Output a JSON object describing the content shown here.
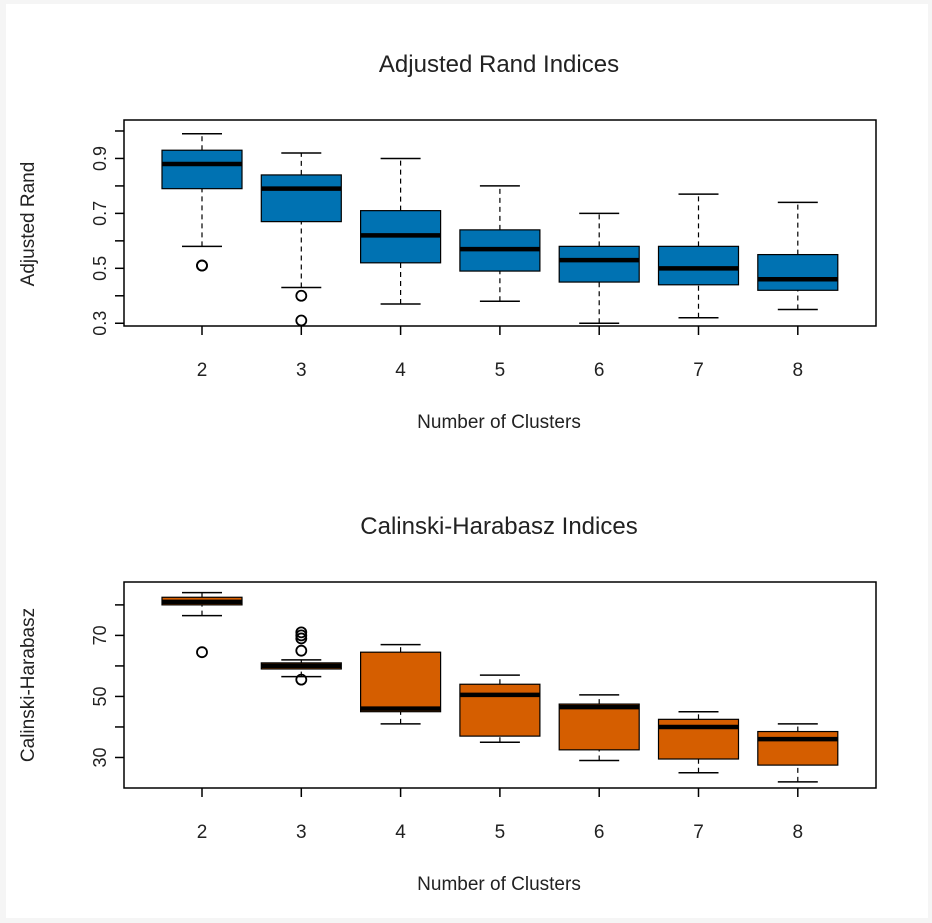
{
  "chart_data": [
    {
      "type": "boxplot",
      "title": "Adjusted Rand Indices",
      "xlabel": "Number of Clusters",
      "ylabel": "Adjusted Rand",
      "ylim": [
        0.29,
        1.04
      ],
      "yticks": [
        0.3,
        0.4,
        0.5,
        0.6,
        0.7,
        0.8,
        0.9,
        1.0
      ],
      "ytick_labels": [
        "0.3",
        "",
        "0.5",
        "",
        "0.7",
        "",
        "0.9",
        ""
      ],
      "categories": [
        "2",
        "3",
        "4",
        "5",
        "6",
        "7",
        "8"
      ],
      "fill_color": "#0072B2",
      "boxes": [
        {
          "category": "2",
          "whisker_low": 0.58,
          "q1": 0.79,
          "median": 0.88,
          "q3": 0.93,
          "whisker_high": 0.99,
          "outliers": [
            0.51,
            0.51
          ]
        },
        {
          "category": "3",
          "whisker_low": 0.43,
          "q1": 0.67,
          "median": 0.79,
          "q3": 0.84,
          "whisker_high": 0.92,
          "outliers": [
            0.4,
            0.31
          ]
        },
        {
          "category": "4",
          "whisker_low": 0.37,
          "q1": 0.52,
          "median": 0.62,
          "q3": 0.71,
          "whisker_high": 0.9,
          "outliers": []
        },
        {
          "category": "5",
          "whisker_low": 0.38,
          "q1": 0.49,
          "median": 0.57,
          "q3": 0.64,
          "whisker_high": 0.8,
          "outliers": []
        },
        {
          "category": "6",
          "whisker_low": 0.3,
          "q1": 0.45,
          "median": 0.53,
          "q3": 0.58,
          "whisker_high": 0.7,
          "outliers": []
        },
        {
          "category": "7",
          "whisker_low": 0.32,
          "q1": 0.44,
          "median": 0.5,
          "q3": 0.58,
          "whisker_high": 0.77,
          "outliers": []
        },
        {
          "category": "8",
          "whisker_low": 0.35,
          "q1": 0.42,
          "median": 0.46,
          "q3": 0.55,
          "whisker_high": 0.74,
          "outliers": []
        }
      ]
    },
    {
      "type": "boxplot",
      "title": "Calinski-Harabasz Indices",
      "xlabel": "Number of Clusters",
      "ylabel": "Calinski-Harabasz",
      "ylim": [
        20,
        87.5
      ],
      "yticks": [
        30,
        40,
        50,
        60,
        70,
        80
      ],
      "ytick_labels": [
        "30",
        "",
        "50",
        "",
        "70",
        ""
      ],
      "categories": [
        "2",
        "3",
        "4",
        "5",
        "6",
        "7",
        "8"
      ],
      "fill_color": "#D55E00",
      "boxes": [
        {
          "category": "2",
          "whisker_low": 76.5,
          "q1": 80.0,
          "median": 81.0,
          "q3": 82.5,
          "whisker_high": 84.0,
          "outliers": [
            64.5
          ]
        },
        {
          "category": "3",
          "whisker_low": 56.5,
          "q1": 59.0,
          "median": 60.0,
          "q3": 61.0,
          "whisker_high": 62.0,
          "outliers": [
            71.0,
            70.0,
            69.0,
            65.0,
            55.5
          ]
        },
        {
          "category": "4",
          "whisker_low": 41.0,
          "q1": 45.0,
          "median": 46.0,
          "q3": 64.5,
          "whisker_high": 67.0,
          "outliers": []
        },
        {
          "category": "5",
          "whisker_low": 35.0,
          "q1": 37.0,
          "median": 50.5,
          "q3": 54.0,
          "whisker_high": 57.0,
          "outliers": []
        },
        {
          "category": "6",
          "whisker_low": 29.0,
          "q1": 32.5,
          "median": 46.5,
          "q3": 47.5,
          "whisker_high": 50.5,
          "outliers": []
        },
        {
          "category": "7",
          "whisker_low": 25.0,
          "q1": 29.5,
          "median": 40.0,
          "q3": 42.5,
          "whisker_high": 45.0,
          "outliers": []
        },
        {
          "category": "8",
          "whisker_low": 22.0,
          "q1": 27.5,
          "median": 36.0,
          "q3": 38.5,
          "whisker_high": 41.0,
          "outliers": []
        }
      ]
    }
  ]
}
